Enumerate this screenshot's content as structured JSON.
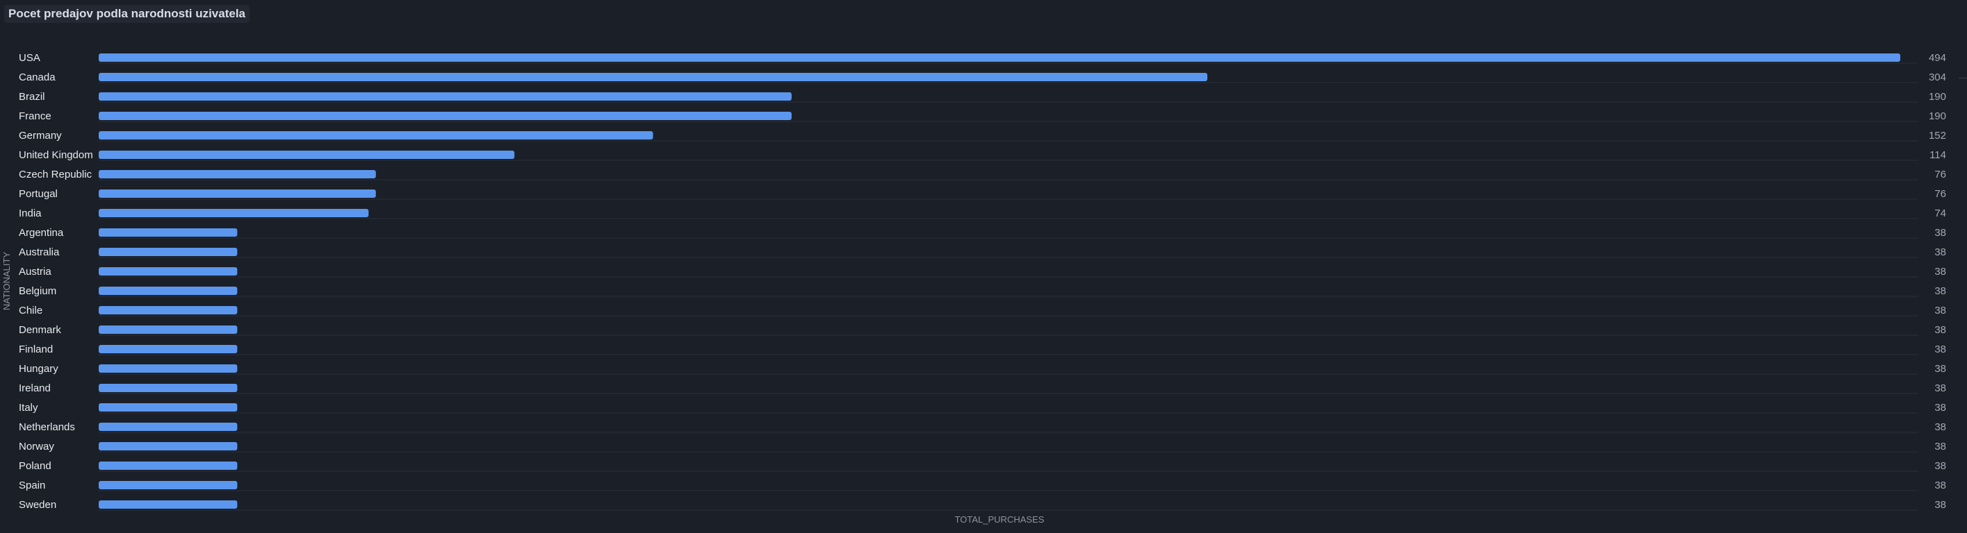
{
  "panel": {
    "title": "Pocet predajov podla narodnosti uzivatela"
  },
  "colors": {
    "bar": "#5b97ee",
    "grid": "#2b303a",
    "background": "#1b1f27"
  },
  "chart_data": {
    "type": "bar",
    "orientation": "horizontal",
    "title": "Pocet predajov podla narodnosti uzivatela",
    "xlabel": "TOTAL_PURCHASES",
    "ylabel": "NATIONALITY",
    "categories": [
      "USA",
      "Canada",
      "Brazil",
      "France",
      "Germany",
      "United Kingdom",
      "Czech Republic",
      "Portugal",
      "India",
      "Argentina",
      "Australia",
      "Austria",
      "Belgium",
      "Chile",
      "Denmark",
      "Finland",
      "Hungary",
      "Ireland",
      "Italy",
      "Netherlands",
      "Norway",
      "Poland",
      "Spain",
      "Sweden"
    ],
    "values": [
      494,
      304,
      190,
      190,
      152,
      114,
      76,
      76,
      74,
      38,
      38,
      38,
      38,
      38,
      38,
      38,
      38,
      38,
      38,
      38,
      38,
      38,
      38,
      38
    ],
    "xlim": [
      0,
      494
    ],
    "grid": true,
    "legend": "none"
  }
}
